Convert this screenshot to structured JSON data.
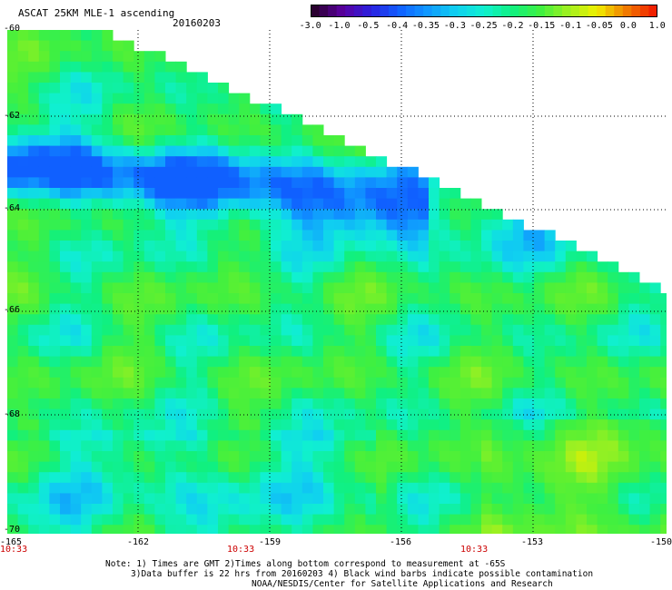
{
  "header": {
    "title": "ASCAT 25KM MLE-1 ascending",
    "date": "20160203"
  },
  "colorbar": {
    "ticks": [
      "-3.0",
      "-1.0",
      "-0.5",
      "-0.4",
      "-0.35",
      "-0.3",
      "-0.25",
      "-0.2",
      "-0.15",
      "-0.1",
      "-0.05",
      "0.0",
      "1.0"
    ],
    "colors": [
      "#2a0030",
      "#5a00a0",
      "#2a20e0",
      "#1060ff",
      "#1098ff",
      "#10d0f0",
      "#10f0d0",
      "#10f080",
      "#40f040",
      "#a0f020",
      "#f0f000",
      "#f08000",
      "#f02000"
    ]
  },
  "map": {
    "lat_labels": [
      "-60",
      "-62",
      "-64",
      "-66",
      "-68",
      "-70"
    ],
    "lon_labels": [
      "-165",
      "-162",
      "-159",
      "-156",
      "-153",
      "-150"
    ],
    "time_labels": [
      "10:33",
      "10:33",
      "10:33"
    ]
  },
  "footer": {
    "note_line1": "Note: 1) Times are GMT 2)Times along bottom correspond to measurement at -65S",
    "note_line2": "3)Data buffer is 22 hrs from 20160203 4) Black wind barbs indicate possible contamination",
    "credit": "NOAA/NESDIS/Center for Satellite Applications and Research"
  }
}
